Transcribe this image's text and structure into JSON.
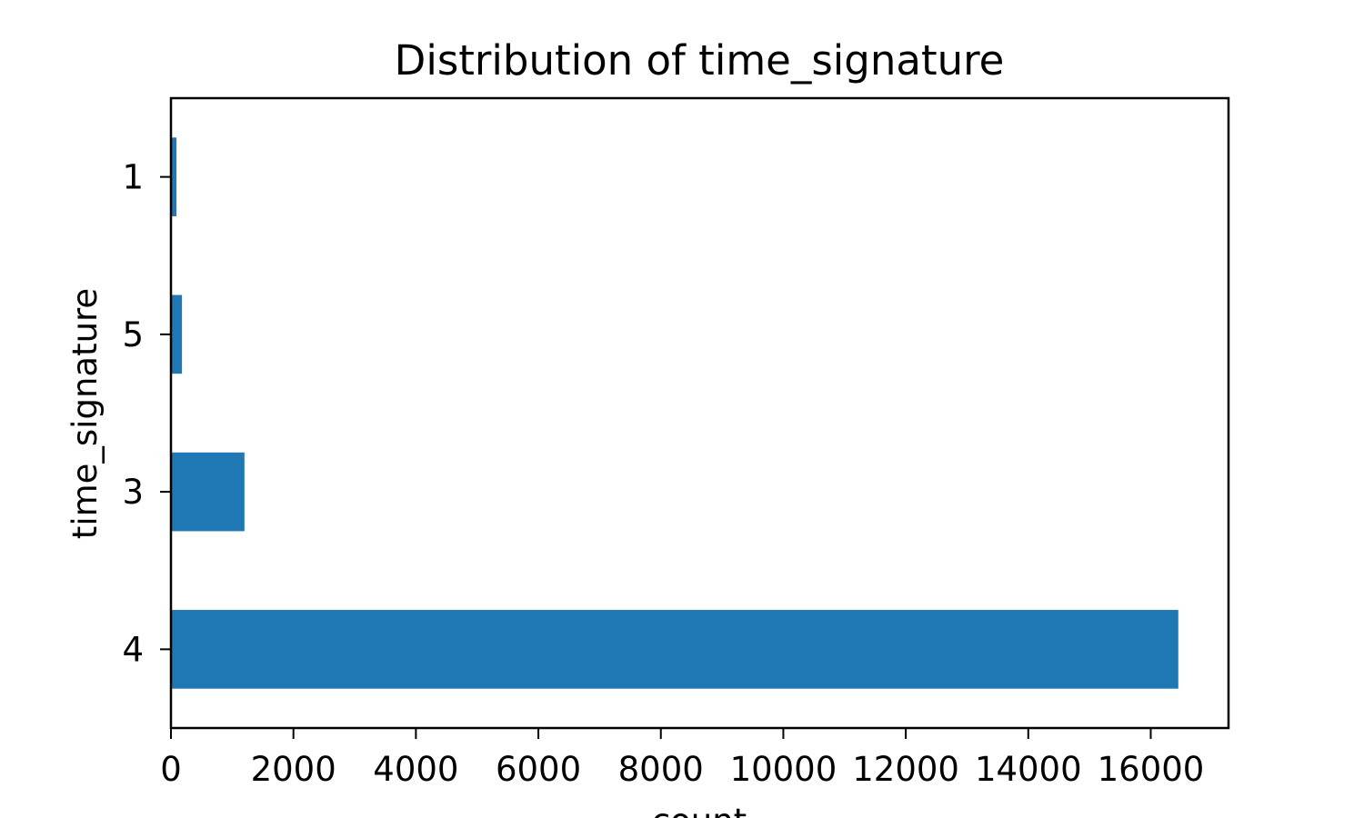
{
  "chart_data": {
    "type": "bar",
    "orientation": "horizontal",
    "title": "Distribution of time_signature",
    "xlabel": "count",
    "ylabel": "time_signature",
    "categories": [
      "4",
      "3",
      "5",
      "1"
    ],
    "values": [
      16450,
      1200,
      180,
      90
    ],
    "xlim": [
      0,
      17270
    ],
    "x_ticks": [
      "0",
      "2000",
      "4000",
      "6000",
      "8000",
      "10000",
      "12000",
      "14000",
      "16000"
    ],
    "x_tick_values": [
      0,
      2000,
      4000,
      6000,
      8000,
      10000,
      12000,
      14000,
      16000
    ],
    "bar_color": "#1f77b4",
    "grid": false,
    "legend": "none"
  }
}
